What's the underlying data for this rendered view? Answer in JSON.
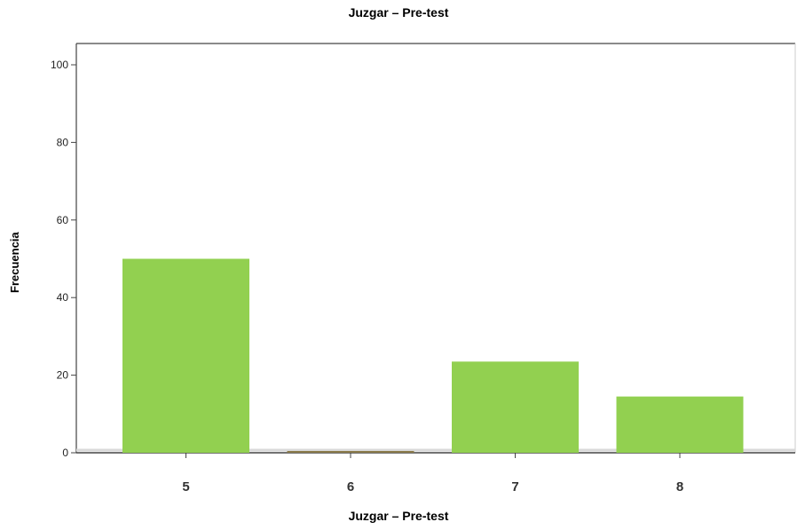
{
  "chart_data": {
    "type": "bar",
    "title": "Juzgar – Pre-test",
    "xlabel": "Juzgar – Pre-test",
    "ylabel": "Frecuencia",
    "categories": [
      "5",
      "6",
      "7",
      "8"
    ],
    "values": [
      50,
      0,
      23.5,
      14.5
    ],
    "ylim": [
      0,
      100
    ],
    "yticks": [
      0,
      20,
      40,
      60,
      80,
      100
    ],
    "bar_color": "#92d050",
    "grid": false
  }
}
